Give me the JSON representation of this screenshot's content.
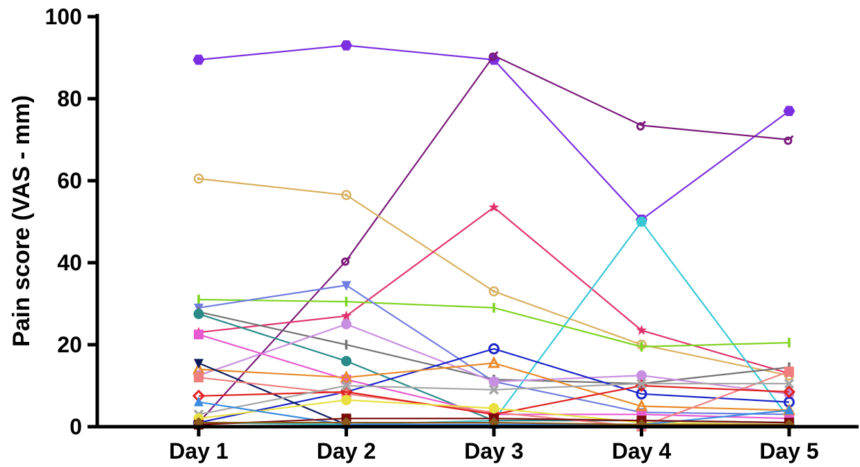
{
  "chart_data": {
    "type": "line",
    "title": "",
    "xlabel": "",
    "ylabel": "Pain score (VAS - mm)",
    "categories": [
      "Day 1",
      "Day 2",
      "Day 3",
      "Day 4",
      "Day 5"
    ],
    "ylim": [
      0,
      100
    ],
    "yticks": [
      0,
      20,
      40,
      60,
      80,
      100
    ],
    "grid": false,
    "legend": "none",
    "series": [
      {
        "color": "#7b2fe0",
        "marker": "hexagon",
        "values": [
          89.5,
          93,
          89.5,
          50.5,
          77
        ]
      },
      {
        "color": "#7a1a7a",
        "marker": "male-sign",
        "values": [
          1,
          40.5,
          90.5,
          73.5,
          70
        ]
      },
      {
        "color": "#d9b060",
        "marker": "ring-dot",
        "values": [
          60.5,
          56.5,
          33,
          20,
          12.5
        ]
      },
      {
        "color": "#e0336e",
        "marker": "star",
        "values": [
          23,
          27,
          53.5,
          23.5,
          13
        ]
      },
      {
        "color": "#39c7d6",
        "marker": "circle",
        "values": [
          1,
          0.5,
          1.5,
          50,
          2
        ]
      },
      {
        "color": "#7ed321",
        "marker": "bar",
        "values": [
          31,
          30.5,
          29,
          19.5,
          20.5
        ]
      },
      {
        "color": "#6f7de0",
        "marker": "triangle-down",
        "values": [
          29,
          34.5,
          11,
          3.5,
          3
        ]
      },
      {
        "color": "#737373",
        "marker": "bar",
        "values": [
          28,
          20,
          11.5,
          10.5,
          14.5
        ]
      },
      {
        "color": "#2a8a8a",
        "marker": "circle",
        "values": [
          27.5,
          16,
          1.5,
          1.5,
          1
        ]
      },
      {
        "color": "#c88ee0",
        "marker": "circle",
        "values": [
          12.5,
          25,
          11,
          12.5,
          8
        ]
      },
      {
        "color": "#e85ad0",
        "marker": "square",
        "values": [
          22.5,
          11.5,
          3,
          3,
          2
        ]
      },
      {
        "color": "#1a24c8",
        "marker": "ring",
        "values": [
          1,
          8.5,
          19,
          8,
          6
        ]
      },
      {
        "color": "#e88a2a",
        "marker": "triangle-ring",
        "values": [
          14,
          12,
          15.5,
          5,
          4
        ]
      },
      {
        "color": "#0b1a5c",
        "marker": "triangle-down",
        "values": [
          15.5,
          0.5,
          0.5,
          0.5,
          0.5
        ]
      },
      {
        "color": "#f08080",
        "marker": "square",
        "values": [
          12,
          8,
          3.5,
          0,
          13.5
        ]
      },
      {
        "color": "#e02020",
        "marker": "diamond-ring",
        "values": [
          7.5,
          8.5,
          3,
          10,
          8.5
        ]
      },
      {
        "color": "#a6a6a6",
        "marker": "cross",
        "values": [
          3,
          10,
          9,
          10.5,
          10.5
        ]
      },
      {
        "color": "#e8e040",
        "marker": "circle",
        "values": [
          2,
          6.5,
          4.5,
          1,
          0.5
        ]
      },
      {
        "color": "#3a8be0",
        "marker": "triangle",
        "values": [
          6,
          0.5,
          0.5,
          0.5,
          4
        ]
      },
      {
        "color": "#7a0a0a",
        "marker": "square",
        "values": [
          0.5,
          2,
          2,
          1.5,
          1
        ]
      },
      {
        "color": "#8a5a1a",
        "marker": "diamond",
        "values": [
          1,
          1,
          1,
          0.5,
          0.5
        ]
      }
    ]
  }
}
